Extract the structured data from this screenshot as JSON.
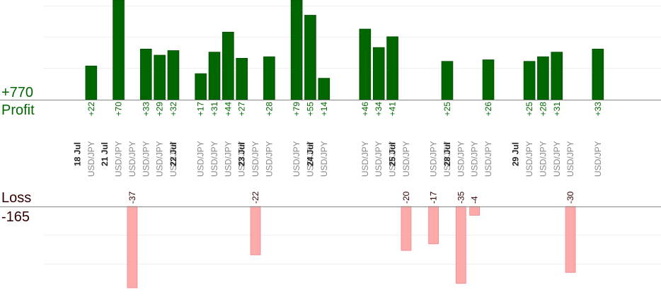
{
  "summary": {
    "profit_total": "+770",
    "profit_label": "Profit",
    "loss_label": "Loss",
    "loss_total": "-165"
  },
  "colors": {
    "profit_fill": "#006600",
    "profit_stroke": "#004400",
    "profit_text": "#006600",
    "loss_fill": "#ffaaaa",
    "loss_stroke": "#ee8888",
    "loss_text": "#330000",
    "grid": "#eeeeee",
    "axis": "#888888",
    "date_text": "#222222",
    "pair_text": "#888888"
  },
  "chart_data": {
    "type": "bar",
    "grid": true,
    "dates": [
      {
        "label": "18 Jul",
        "slot": 0
      },
      {
        "label": "21 Jul",
        "slot": 2
      },
      {
        "label": "22 Jul",
        "slot": 7
      },
      {
        "label": "23 Jul",
        "slot": 12
      },
      {
        "label": "24 Jul",
        "slot": 17
      },
      {
        "label": "25 Jul",
        "slot": 23
      },
      {
        "label": "28 Jul",
        "slot": 27
      },
      {
        "label": "29 Jul",
        "slot": 32
      }
    ],
    "trades": [
      {
        "slot": 1,
        "pair": "USD/JPY",
        "value": 22,
        "label": "+22"
      },
      {
        "slot": 3,
        "pair": "USD/JPY",
        "value": 70,
        "label": "+70"
      },
      {
        "slot": 4,
        "pair": "USD/JPY",
        "value": -37,
        "label": "-37"
      },
      {
        "slot": 5,
        "pair": "USD/JPY",
        "value": 33,
        "label": "+33"
      },
      {
        "slot": 6,
        "pair": "USD/JPY",
        "value": 29,
        "label": "+29"
      },
      {
        "slot": 7,
        "pair": "USD/JPY",
        "value": 32,
        "label": "+32"
      },
      {
        "slot": 9,
        "pair": "USD/JPY",
        "value": 17,
        "label": "+17"
      },
      {
        "slot": 10,
        "pair": "USD/JPY",
        "value": 31,
        "label": "+31"
      },
      {
        "slot": 11,
        "pair": "USD/JPY",
        "value": 44,
        "label": "+44"
      },
      {
        "slot": 12,
        "pair": "USD/JPY",
        "value": 27,
        "label": "+27"
      },
      {
        "slot": 13,
        "pair": "USD/JPY",
        "value": -22,
        "label": "-22"
      },
      {
        "slot": 14,
        "pair": "USD/JPY",
        "value": 28,
        "label": "+28"
      },
      {
        "slot": 16,
        "pair": "USD/JPY",
        "value": 79,
        "label": "+79"
      },
      {
        "slot": 17,
        "pair": "USD/JPY",
        "value": 55,
        "label": "+55"
      },
      {
        "slot": 18,
        "pair": "USD/JPY",
        "value": 14,
        "label": "+14"
      },
      {
        "slot": 21,
        "pair": "USD/JPY",
        "value": 46,
        "label": "+46"
      },
      {
        "slot": 22,
        "pair": "USD/JPY",
        "value": 34,
        "label": "+34"
      },
      {
        "slot": 23,
        "pair": "USD/JPY",
        "value": 41,
        "label": "+41"
      },
      {
        "slot": 24,
        "pair": "USD/JPY",
        "value": -20,
        "label": "-20"
      },
      {
        "slot": 26,
        "pair": "USD/JPY",
        "value": -17,
        "label": "-17"
      },
      {
        "slot": 27,
        "pair": "USD/JPY",
        "value": 25,
        "label": "+25"
      },
      {
        "slot": 28,
        "pair": "USD/JPY",
        "value": -35,
        "label": "-35"
      },
      {
        "slot": 29,
        "pair": "USD/JPY",
        "value": -4,
        "label": "-4"
      },
      {
        "slot": 30,
        "pair": "USD/JPY",
        "value": 26,
        "label": "+26"
      },
      {
        "slot": 33,
        "pair": "USD/JPY",
        "value": 25,
        "label": "+25"
      },
      {
        "slot": 34,
        "pair": "USD/JPY",
        "value": 28,
        "label": "+28"
      },
      {
        "slot": 35,
        "pair": "USD/JPY",
        "value": 31,
        "label": "+31"
      },
      {
        "slot": 36,
        "pair": "USD/JPY",
        "value": -30,
        "label": "-30"
      },
      {
        "slot": 38,
        "pair": "USD/JPY",
        "value": 33,
        "label": "+33"
      }
    ]
  }
}
